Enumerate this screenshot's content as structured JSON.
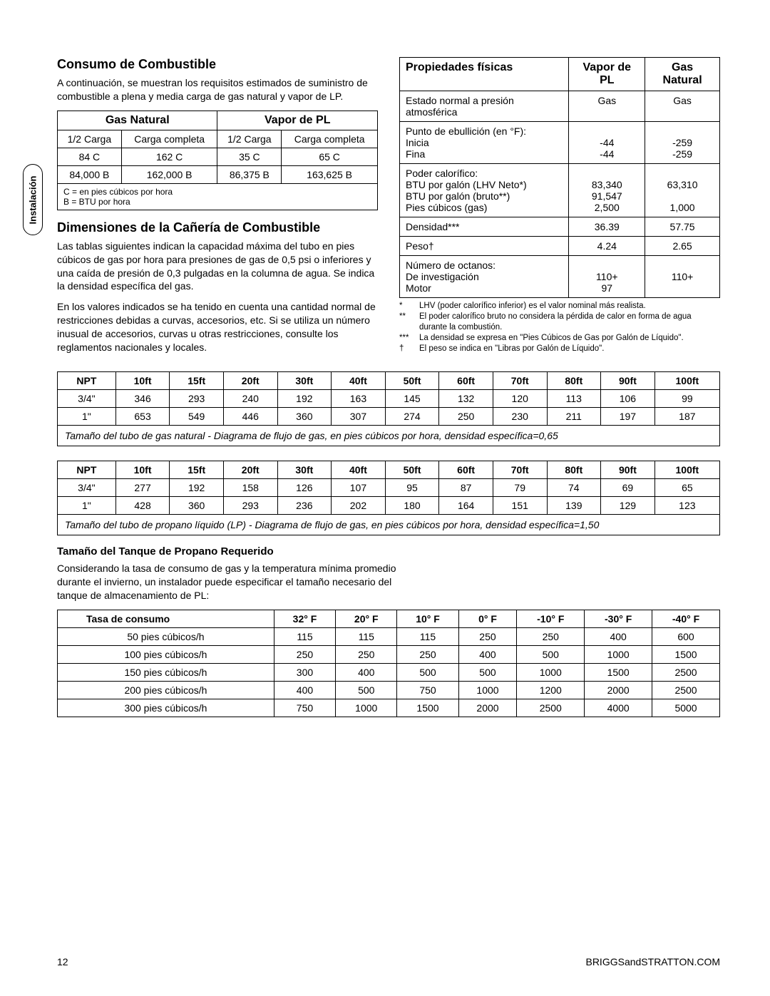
{
  "sideTab": "Instalación",
  "section1": {
    "title": "Consumo de Combustible",
    "intro": "A continuación, se muestran los requisitos estimados de suministro de combustible a plena y media carga de gas natural y vapor de LP."
  },
  "fuelTable": {
    "groupHeaders": [
      "Gas Natural",
      "Vapor de PL"
    ],
    "subHeaders": [
      "1/2 Carga",
      "Carga completa",
      "1/2 Carga",
      "Carga completa"
    ],
    "rows": [
      [
        "84 C",
        "162 C",
        "35 C",
        "65 C"
      ],
      [
        "84,000 B",
        "162,000 B",
        "86,375 B",
        "163,625 B"
      ]
    ],
    "notes": "C = en pies cúbicos por hora\nB = BTU por hora"
  },
  "section2": {
    "title": "Dimensiones de la Cañería de Combustible",
    "p1": "Las tablas siguientes indican la capacidad máxima del tubo en pies cúbicos de gas por hora para presiones de gas de 0,5 psi o inferiores y una caída de presión de 0,3 pulgadas en la columna de agua. Se indica la densidad específica del gas.",
    "p2": "En los valores indicados se ha tenido en cuenta una cantidad normal de restricciones debidas a curvas, accesorios, etc. Si se utiliza un número inusual de accesorios, curvas u otras restricciones, consulte los reglamentos nacionales y locales."
  },
  "propsTable": {
    "headers": [
      "Propiedades físicas",
      "Vapor de PL",
      "Gas Natural"
    ],
    "rows": [
      {
        "label": "Estado normal a presión atmosférica",
        "c1": "Gas",
        "c2": "Gas"
      },
      {
        "label": "Punto de ebullición (en °F):\nInicia\nFina",
        "c1": "\n-44\n-44",
        "c2": "\n-259\n-259"
      },
      {
        "label": "Poder calorífico:\nBTU por galón (LHV Neto*)\nBTU por galón (bruto**)\nPies cúbicos (gas)",
        "c1": "\n83,340\n91,547\n2,500",
        "c2": "\n63,310\n\n1,000"
      },
      {
        "label": "Densidad***",
        "c1": "36.39",
        "c2": "57.75"
      },
      {
        "label": "Peso†",
        "c1": "4.24",
        "c2": "2.65"
      },
      {
        "label": "Número de octanos:\nDe investigación\nMotor",
        "c1": "\n110+\n97",
        "c2": "\n110+"
      }
    ],
    "footnotes": [
      {
        "mark": "*",
        "text": "LHV (poder calorífico inferior) es el valor nominal más realista."
      },
      {
        "mark": "**",
        "text": "El poder calorífico bruto no considera la pérdida de calor en forma de agua durante la combustión."
      },
      {
        "mark": "***",
        "text": "La densidad se expresa en \"Pies Cúbicos de Gas por Galón de Líquido\"."
      },
      {
        "mark": "†",
        "text": "El peso se indica en \"Libras por Galón de Líquido\"."
      }
    ]
  },
  "pipeHeaders": [
    "NPT",
    "10ft",
    "15ft",
    "20ft",
    "30ft",
    "40ft",
    "50ft",
    "60ft",
    "70ft",
    "80ft",
    "90ft",
    "100ft"
  ],
  "pipeTable1": {
    "rows": [
      [
        "3/4\"",
        "346",
        "293",
        "240",
        "192",
        "163",
        "145",
        "132",
        "120",
        "113",
        "106",
        "99"
      ],
      [
        "1\"",
        "653",
        "549",
        "446",
        "360",
        "307",
        "274",
        "250",
        "230",
        "211",
        "197",
        "187"
      ]
    ],
    "caption": "Tamaño del tubo de gas natural - Diagrama de flujo de gas, en pies cúbicos por hora, densidad específica=0,65"
  },
  "pipeTable2": {
    "rows": [
      [
        "3/4\"",
        "277",
        "192",
        "158",
        "126",
        "107",
        "95",
        "87",
        "79",
        "74",
        "69",
        "65"
      ],
      [
        "1\"",
        "428",
        "360",
        "293",
        "236",
        "202",
        "180",
        "164",
        "151",
        "139",
        "129",
        "123"
      ]
    ],
    "caption": "Tamaño del tubo de propano líquido (LP) - Diagrama de flujo de gas, en pies cúbicos por hora, densidad específica=1,50"
  },
  "tankSection": {
    "title": "Tamaño del Tanque de Propano Requerido",
    "intro": "Considerando la tasa de consumo de gas y la temperatura mínima promedio durante el invierno, un instalador puede especificar el tamaño necesario del tanque de almacenamiento de PL:"
  },
  "tankTable": {
    "headers": [
      "Tasa de consumo",
      "32° F",
      "20° F",
      "10° F",
      "0° F",
      "-10° F",
      "-30° F",
      "-40° F"
    ],
    "rows": [
      [
        "50 pies cúbicos/h",
        "115",
        "115",
        "115",
        "250",
        "250",
        "400",
        "600"
      ],
      [
        "100 pies cúbicos/h",
        "250",
        "250",
        "250",
        "400",
        "500",
        "1000",
        "1500"
      ],
      [
        "150 pies cúbicos/h",
        "300",
        "400",
        "500",
        "500",
        "1000",
        "1500",
        "2500"
      ],
      [
        "200 pies cúbicos/h",
        "400",
        "500",
        "750",
        "1000",
        "1200",
        "2000",
        "2500"
      ],
      [
        "300 pies cúbicos/h",
        "750",
        "1000",
        "1500",
        "2000",
        "2500",
        "4000",
        "5000"
      ]
    ]
  },
  "footer": {
    "pageNum": "12",
    "site": "BRIGGSandSTRATTON.COM"
  }
}
